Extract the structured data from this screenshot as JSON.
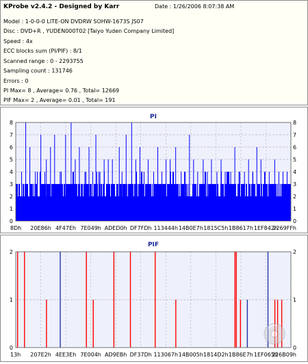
{
  "header": {
    "title": "KProbe v2.4.2 - Designed by Karr",
    "date": "Date : 1/26/2006 8:07:38 AM",
    "lines": [
      "Model : 1-0-0-0 LITE-ON DVDRW SOHW-1673S JS07",
      "Disc : DVD+R , YUDEN000T02 [Taiyo Yuden Company Limited]",
      "Speed : 4x",
      "ECC blocks sum (PI/PIF) : 8/1",
      "Scanned range : 0 - 2293755",
      "Sampling count : 131746",
      "Errors : 0",
      "PI Max= 8 , Average= 0.76 , Total= 12669",
      "PIF Max= 2 , Average= 0.01 , Total= 191"
    ]
  },
  "colors": {
    "pi_fill": "#0000ff",
    "pif_spike": "#ff0000",
    "pif_spike_alt": "#2233aa",
    "plot_bg": "#eef0fb",
    "grid": "#9a9aaa"
  },
  "chart_data": [
    {
      "type": "bar",
      "title": "PI",
      "ylim": [
        0,
        8
      ],
      "y_ticks": [
        "0",
        "1",
        "2",
        "3",
        "4",
        "5",
        "6",
        "7",
        "8"
      ],
      "x_tick_labels": [
        "8Dh",
        "20E86h",
        "4F47Eh",
        "7E049h",
        "ADED0h",
        "DF7FDh",
        "113444h",
        "14B0E7h",
        "1815C5h",
        "1B8617h",
        "1EF842h",
        "2269FFh"
      ],
      "base_level": 2,
      "common_level": 3,
      "spikes": [
        {
          "x": 0.02,
          "v": 4
        },
        {
          "x": 0.035,
          "v": 8
        },
        {
          "x": 0.05,
          "v": 6
        },
        {
          "x": 0.07,
          "v": 4
        },
        {
          "x": 0.09,
          "v": 7
        },
        {
          "x": 0.11,
          "v": 5
        },
        {
          "x": 0.125,
          "v": 6
        },
        {
          "x": 0.14,
          "v": 7
        },
        {
          "x": 0.16,
          "v": 4
        },
        {
          "x": 0.18,
          "v": 7
        },
        {
          "x": 0.2,
          "v": 8
        },
        {
          "x": 0.215,
          "v": 5
        },
        {
          "x": 0.23,
          "v": 6
        },
        {
          "x": 0.25,
          "v": 4
        },
        {
          "x": 0.265,
          "v": 6
        },
        {
          "x": 0.29,
          "v": 7
        },
        {
          "x": 0.305,
          "v": 4
        },
        {
          "x": 0.32,
          "v": 5
        },
        {
          "x": 0.335,
          "v": 5
        },
        {
          "x": 0.35,
          "v": 5
        },
        {
          "x": 0.375,
          "v": 6
        },
        {
          "x": 0.385,
          "v": 4
        },
        {
          "x": 0.4,
          "v": 7
        },
        {
          "x": 0.42,
          "v": 8
        },
        {
          "x": 0.435,
          "v": 5
        },
        {
          "x": 0.45,
          "v": 6
        },
        {
          "x": 0.465,
          "v": 4
        },
        {
          "x": 0.48,
          "v": 5
        },
        {
          "x": 0.5,
          "v": 4
        },
        {
          "x": 0.515,
          "v": 6
        },
        {
          "x": 0.53,
          "v": 4
        },
        {
          "x": 0.545,
          "v": 5
        },
        {
          "x": 0.56,
          "v": 5
        },
        {
          "x": 0.58,
          "v": 6
        },
        {
          "x": 0.6,
          "v": 4
        },
        {
          "x": 0.615,
          "v": 4
        },
        {
          "x": 0.63,
          "v": 7
        },
        {
          "x": 0.645,
          "v": 5
        },
        {
          "x": 0.66,
          "v": 4
        },
        {
          "x": 0.68,
          "v": 5
        },
        {
          "x": 0.695,
          "v": 4
        },
        {
          "x": 0.71,
          "v": 5
        },
        {
          "x": 0.73,
          "v": 4
        },
        {
          "x": 0.745,
          "v": 5
        },
        {
          "x": 0.76,
          "v": 4
        },
        {
          "x": 0.78,
          "v": 4
        },
        {
          "x": 0.795,
          "v": 6
        },
        {
          "x": 0.81,
          "v": 4
        },
        {
          "x": 0.83,
          "v": 4
        },
        {
          "x": 0.845,
          "v": 5
        },
        {
          "x": 0.86,
          "v": 4
        },
        {
          "x": 0.875,
          "v": 6
        },
        {
          "x": 0.89,
          "v": 5
        },
        {
          "x": 0.905,
          "v": 4
        },
        {
          "x": 0.92,
          "v": 4
        },
        {
          "x": 0.94,
          "v": 5
        },
        {
          "x": 0.955,
          "v": 4
        },
        {
          "x": 0.97,
          "v": 4
        },
        {
          "x": 0.985,
          "v": 4
        }
      ]
    },
    {
      "type": "bar",
      "title": "PIF",
      "ylim": [
        0,
        2
      ],
      "y_ticks": [
        "0",
        "1",
        "2"
      ],
      "x_tick_labels": [
        "13h",
        "207E2h",
        "4EE3Eh",
        "7E004h",
        "AD9EBh",
        "DF37Dh",
        "113067h",
        "14B005h",
        "1814D2h",
        "1B86E7h",
        "1EF065h",
        "226B09h"
      ],
      "spikes": [
        {
          "x": 0.005,
          "v": 2,
          "c": "red"
        },
        {
          "x": 0.03,
          "v": 2,
          "c": "red"
        },
        {
          "x": 0.11,
          "v": 1,
          "c": "red"
        },
        {
          "x": 0.16,
          "v": 2,
          "c": "alt"
        },
        {
          "x": 0.255,
          "v": 2,
          "c": "red"
        },
        {
          "x": 0.28,
          "v": 1,
          "c": "red"
        },
        {
          "x": 0.355,
          "v": 2,
          "c": "red"
        },
        {
          "x": 0.415,
          "v": 2,
          "c": "red"
        },
        {
          "x": 0.505,
          "v": 2,
          "c": "red"
        },
        {
          "x": 0.58,
          "v": 1,
          "c": "red"
        },
        {
          "x": 0.795,
          "v": 2,
          "c": "red"
        },
        {
          "x": 0.8,
          "v": 2,
          "c": "red"
        },
        {
          "x": 0.815,
          "v": 1,
          "c": "red"
        },
        {
          "x": 0.84,
          "v": 1,
          "c": "alt"
        },
        {
          "x": 0.915,
          "v": 2,
          "c": "alt"
        },
        {
          "x": 0.94,
          "v": 1,
          "c": "red"
        },
        {
          "x": 0.95,
          "v": 1,
          "c": "red"
        },
        {
          "x": 0.965,
          "v": 1,
          "c": "red"
        }
      ]
    }
  ]
}
